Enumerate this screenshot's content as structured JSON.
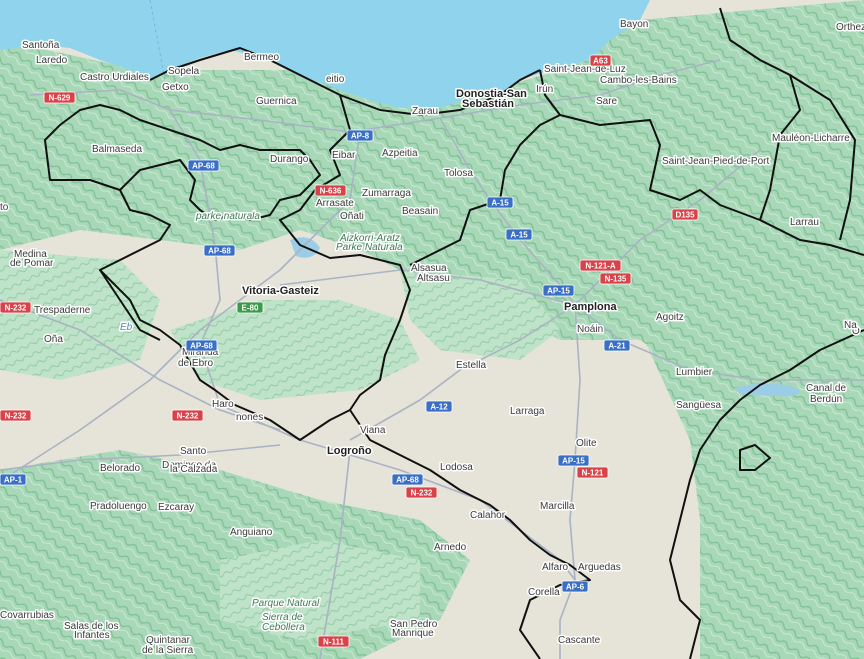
{
  "map": {
    "colors": {
      "sea": "#8fd4ec",
      "land": "#e6e3d8",
      "terrain": "#b7dfc3",
      "terrain_dark": "#8ec9a2",
      "border": "#111111",
      "road": "#a9b3c4",
      "reservoir": "#9ccde6",
      "shield_blue": "#3a6fc6",
      "shield_red": "#d8434a",
      "shield_green": "#3d9a4a"
    },
    "places": [
      {
        "id": "santona",
        "text": "Santoña",
        "kind": "town"
      },
      {
        "id": "laredo",
        "text": "Laredo",
        "kind": "town"
      },
      {
        "id": "castro",
        "text": "Castro Urdiales",
        "kind": "town"
      },
      {
        "id": "sopela",
        "text": "Sopela",
        "kind": "town"
      },
      {
        "id": "getxo",
        "text": "Getxo",
        "kind": "town"
      },
      {
        "id": "bermeo",
        "text": "Bermeo",
        "kind": "town"
      },
      {
        "id": "lekeitio",
        "text": "eitio",
        "kind": "town"
      },
      {
        "id": "gernika",
        "text": "Guernica",
        "kind": "town"
      },
      {
        "id": "donostia1",
        "text": "Donostia-San",
        "kind": "city"
      },
      {
        "id": "donostia2",
        "text": "Sebastián",
        "kind": "city"
      },
      {
        "id": "zarautz",
        "text": "Zarau",
        "kind": "town"
      },
      {
        "id": "stjean",
        "text": "Saint-Jean-de-Luz",
        "kind": "town"
      },
      {
        "id": "bayonne",
        "text": "Bayon",
        "kind": "town"
      },
      {
        "id": "cambo",
        "text": "Cambo-les-Bains",
        "kind": "town"
      },
      {
        "id": "sare",
        "text": "Sare",
        "kind": "town"
      },
      {
        "id": "irun",
        "text": "Irún",
        "kind": "town"
      },
      {
        "id": "orthez",
        "text": "Orthez",
        "kind": "town"
      },
      {
        "id": "mauleon",
        "text": "Mauléon-Licharre",
        "kind": "town"
      },
      {
        "id": "balmaseda",
        "text": "Balmaseda",
        "kind": "town"
      },
      {
        "id": "durango",
        "text": "Durango",
        "kind": "town"
      },
      {
        "id": "eibar",
        "text": "Eibar",
        "kind": "town"
      },
      {
        "id": "azpeitia",
        "text": "Azpeitia",
        "kind": "town"
      },
      {
        "id": "tolosa",
        "text": "Tolosa",
        "kind": "town"
      },
      {
        "id": "zumarraga",
        "text": "Zumarraga",
        "kind": "town"
      },
      {
        "id": "arrasate",
        "text": "Arrasate",
        "kind": "town"
      },
      {
        "id": "onati",
        "text": "Oñati",
        "kind": "town"
      },
      {
        "id": "beasain",
        "text": "Beasain",
        "kind": "town"
      },
      {
        "id": "sjpp",
        "text": "Saint-Jean-Pied-de-Port",
        "kind": "town"
      },
      {
        "id": "larrau",
        "text": "Larrau",
        "kind": "town"
      },
      {
        "id": "medina1",
        "text": "Medina",
        "kind": "town"
      },
      {
        "id": "medina2",
        "text": "de Pomar",
        "kind": "town"
      },
      {
        "id": "vitoria",
        "text": "Vitoria-Gasteiz",
        "kind": "city"
      },
      {
        "id": "alsasua1",
        "text": "Alsasua",
        "kind": "town"
      },
      {
        "id": "alsasua2",
        "text": "Altsasu",
        "kind": "town"
      },
      {
        "id": "pamplona",
        "text": "Pamplona",
        "kind": "city"
      },
      {
        "id": "noain",
        "text": "Noáin",
        "kind": "town"
      },
      {
        "id": "agoitz",
        "text": "Agoitz",
        "kind": "town"
      },
      {
        "id": "trespaderne",
        "text": "Trespaderne",
        "kind": "town"
      },
      {
        "id": "ona",
        "text": "Oña",
        "kind": "town"
      },
      {
        "id": "miranda1",
        "text": "Miranda",
        "kind": "town"
      },
      {
        "id": "miranda2",
        "text": "de Ebro",
        "kind": "town"
      },
      {
        "id": "estella",
        "text": "Estella",
        "kind": "town"
      },
      {
        "id": "lumbier",
        "text": "Lumbier",
        "kind": "town"
      },
      {
        "id": "sanguesa",
        "text": "Sangüesa",
        "kind": "town"
      },
      {
        "id": "canal1",
        "text": "Canal de",
        "kind": "town"
      },
      {
        "id": "canal2",
        "text": "Berdún",
        "kind": "town"
      },
      {
        "id": "haro",
        "text": "Haro",
        "kind": "town"
      },
      {
        "id": "briones",
        "text": "nones",
        "kind": "town"
      },
      {
        "id": "larraga",
        "text": "Larraga",
        "kind": "town"
      },
      {
        "id": "viana",
        "text": "Viana",
        "kind": "town"
      },
      {
        "id": "logrono",
        "text": "Logroño",
        "kind": "city"
      },
      {
        "id": "olite",
        "text": "Olite",
        "kind": "town"
      },
      {
        "id": "santo1",
        "text": "Santo",
        "kind": "town"
      },
      {
        "id": "santo2",
        "text": "Domingo de",
        "kind": "town"
      },
      {
        "id": "santo3",
        "text": "la Calzada",
        "kind": "town"
      },
      {
        "id": "belorado",
        "text": "Belorado",
        "kind": "town"
      },
      {
        "id": "lodosa",
        "text": "Lodosa",
        "kind": "town"
      },
      {
        "id": "pradoluengo",
        "text": "Pradoluengo",
        "kind": "town"
      },
      {
        "id": "ezcaray",
        "text": "Ezcaray",
        "kind": "town"
      },
      {
        "id": "marcilla",
        "text": "Marcilla",
        "kind": "town"
      },
      {
        "id": "calahorra",
        "text": "Calahor",
        "kind": "town"
      },
      {
        "id": "anguiano",
        "text": "Anguiano",
        "kind": "town"
      },
      {
        "id": "arnedo",
        "text": "Arnedo",
        "kind": "town"
      },
      {
        "id": "alfaro",
        "text": "Alfaro",
        "kind": "town"
      },
      {
        "id": "arguedas",
        "text": "Arguedas",
        "kind": "town"
      },
      {
        "id": "corella",
        "text": "Corella",
        "kind": "town"
      },
      {
        "id": "cascante",
        "text": "Cascante",
        "kind": "town"
      },
      {
        "id": "covarrubias",
        "text": "Covarrubias",
        "kind": "town"
      },
      {
        "id": "salas1",
        "text": "Salas de los",
        "kind": "town"
      },
      {
        "id": "salas2",
        "text": "Infantes",
        "kind": "town"
      },
      {
        "id": "quintanar1",
        "text": "Quintanar",
        "kind": "town"
      },
      {
        "id": "quintanar2",
        "text": "de la Sierra",
        "kind": "town"
      },
      {
        "id": "sanpedro1",
        "text": "San Pedro",
        "kind": "town"
      },
      {
        "id": "sanpedro2",
        "text": "Manrique",
        "kind": "town"
      },
      {
        "id": "park1",
        "text": "parke naturala",
        "kind": "park"
      },
      {
        "id": "park2",
        "text": "Aizkorri-Aratz",
        "kind": "park"
      },
      {
        "id": "park3",
        "text": "Parke Naturala",
        "kind": "park"
      },
      {
        "id": "park4",
        "text": "Parque Natural",
        "kind": "park"
      },
      {
        "id": "park5",
        "text": "Sierra de",
        "kind": "park"
      },
      {
        "id": "park6",
        "text": "Cebollera",
        "kind": "park"
      },
      {
        "id": "ebro",
        "text": "Eb",
        "kind": "water"
      },
      {
        "id": "edge_o",
        "text": "O",
        "kind": "town"
      },
      {
        "id": "edge_na",
        "text": "Na",
        "kind": "town"
      },
      {
        "id": "edge_to",
        "text": "to",
        "kind": "town"
      }
    ],
    "shields": [
      {
        "id": "s_n629",
        "text": "N-629",
        "color": "red"
      },
      {
        "id": "s_ap8a",
        "text": "AP-8",
        "color": "blue"
      },
      {
        "id": "s_ap68a",
        "text": "AP-68",
        "color": "blue"
      },
      {
        "id": "s_n636",
        "text": "N-636",
        "color": "red"
      },
      {
        "id": "s_a15a",
        "text": "A-15",
        "color": "blue"
      },
      {
        "id": "s_a15b",
        "text": "A-15",
        "color": "blue"
      },
      {
        "id": "s_ap68b",
        "text": "AP-68",
        "color": "blue"
      },
      {
        "id": "s_e80",
        "text": "E-80",
        "color": "green"
      },
      {
        "id": "s_a63",
        "text": "A63",
        "color": "red"
      },
      {
        "id": "s_d135",
        "text": "D135",
        "color": "red"
      },
      {
        "id": "s_n121a",
        "text": "N-121-A",
        "color": "red"
      },
      {
        "id": "s_n135",
        "text": "N-135",
        "color": "red"
      },
      {
        "id": "s_a15c",
        "text": "AP-15",
        "color": "blue"
      },
      {
        "id": "s_a21",
        "text": "A-21",
        "color": "blue"
      },
      {
        "id": "s_n232a",
        "text": "N-232",
        "color": "red"
      },
      {
        "id": "s_ap68c",
        "text": "AP-68",
        "color": "blue"
      },
      {
        "id": "s_n232b",
        "text": "N-232",
        "color": "red"
      },
      {
        "id": "s_a12",
        "text": "A-12",
        "color": "blue"
      },
      {
        "id": "s_ap15",
        "text": "AP-15",
        "color": "blue"
      },
      {
        "id": "s_n121",
        "text": "N-121",
        "color": "red"
      },
      {
        "id": "s_ap68d",
        "text": "AP-68",
        "color": "blue"
      },
      {
        "id": "s_n232c",
        "text": "N-232",
        "color": "red"
      },
      {
        "id": "s_ap1",
        "text": "AP-1",
        "color": "blue"
      },
      {
        "id": "s_n111",
        "text": "N-111",
        "color": "red"
      },
      {
        "id": "s_n232d",
        "text": "N-232",
        "color": "red"
      },
      {
        "id": "s_ap68e",
        "text": "AP-6",
        "color": "blue"
      }
    ]
  }
}
